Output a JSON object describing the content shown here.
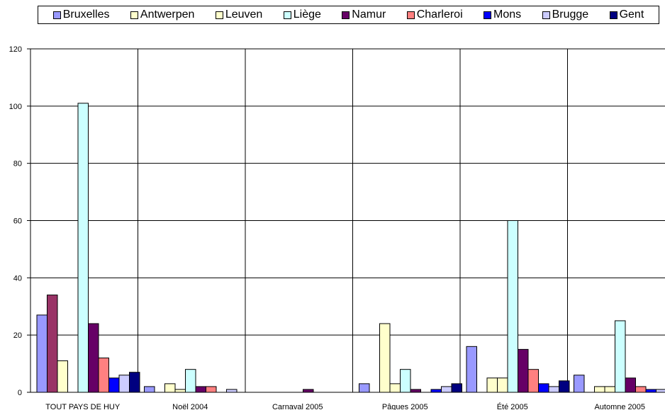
{
  "chart_data": {
    "type": "bar",
    "title": "",
    "xlabel": "",
    "ylabel": "",
    "ylim": [
      0,
      120
    ],
    "yticks": [
      0,
      20,
      40,
      60,
      80,
      100,
      120
    ],
    "grid": true,
    "legend_position": "top",
    "categories": [
      "TOUT PAYS DE HUY",
      "Noël 2004",
      "Carnaval 2005",
      "Pâques 2005",
      "Été 2005",
      "Automne 2005"
    ],
    "series": [
      {
        "name": "Bruxelles",
        "color": "#9999ff",
        "values": [
          27,
          2,
          0,
          3,
          16,
          6
        ]
      },
      {
        "name": "",
        "color": "#993366",
        "values": [
          34,
          0,
          0,
          0,
          0,
          0
        ]
      },
      {
        "name": "Antwerpen",
        "color": "#ffffcc",
        "values": [
          11,
          3,
          0,
          24,
          5,
          2
        ]
      },
      {
        "name": "Leuven",
        "color": "#ffffcc",
        "values": [
          0,
          1,
          0,
          3,
          5,
          2
        ]
      },
      {
        "name": "Liège",
        "color": "#ccffff",
        "values": [
          101,
          8,
          0,
          8,
          60,
          25
        ]
      },
      {
        "name": "Namur",
        "color": "#660066",
        "values": [
          24,
          2,
          1,
          1,
          15,
          5
        ]
      },
      {
        "name": "Charleroi",
        "color": "#ff8080",
        "values": [
          12,
          2,
          0,
          0,
          8,
          2
        ]
      },
      {
        "name": "Mons",
        "color": "#0000ff",
        "values": [
          5,
          0,
          0,
          1,
          3,
          1
        ]
      },
      {
        "name": "Brugge",
        "color": "#ccccff",
        "values": [
          6,
          1,
          0,
          2,
          2,
          1
        ]
      },
      {
        "name": "Gent",
        "color": "#000080",
        "values": [
          7,
          0,
          0,
          3,
          4,
          0
        ]
      }
    ]
  }
}
